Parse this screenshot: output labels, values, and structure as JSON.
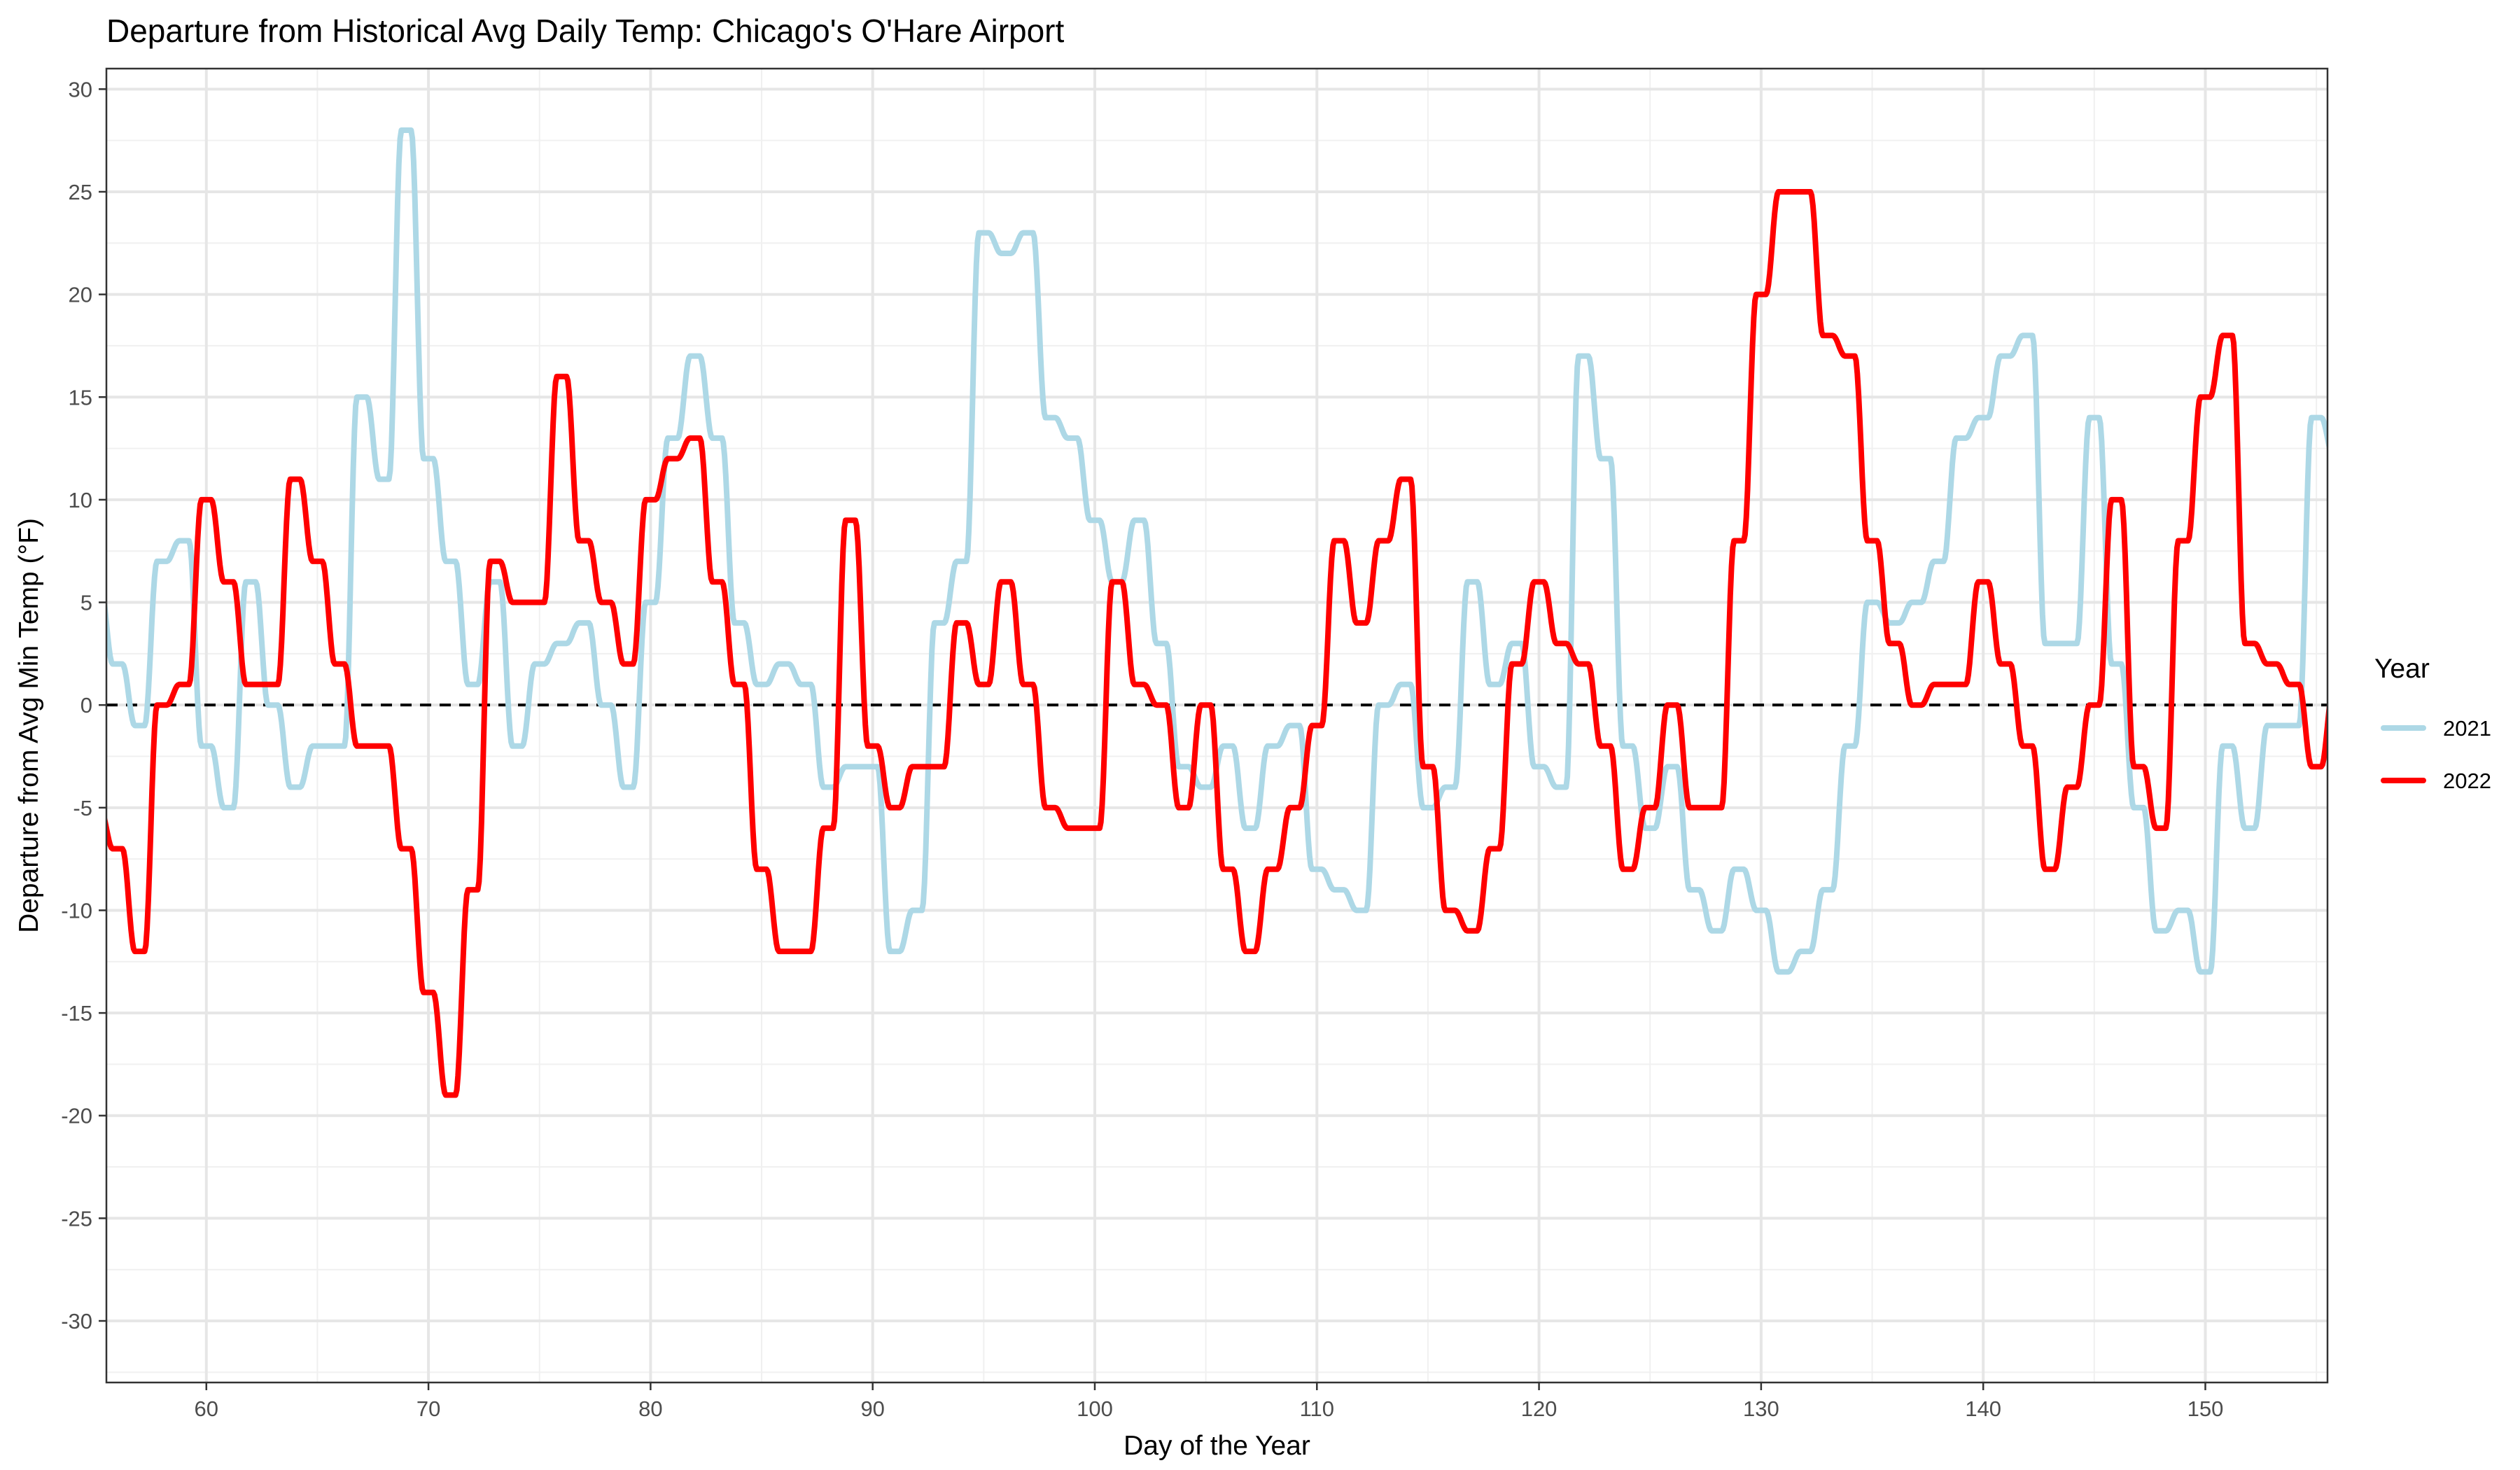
{
  "chart_data": {
    "type": "line",
    "title": "Departure from Historical Avg Daily Temp: Chicago's O'Hare Airport",
    "xlabel": "Day of the Year",
    "ylabel": "Departure from Avg Min Temp (°F)",
    "xlim": [
      55.5,
      155.5
    ],
    "ylim": [
      -33,
      31
    ],
    "x_ticks": [
      60,
      70,
      80,
      90,
      100,
      110,
      120,
      130,
      140,
      150
    ],
    "y_ticks": [
      -30,
      -25,
      -20,
      -15,
      -10,
      -5,
      0,
      5,
      10,
      15,
      20,
      25,
      30
    ],
    "grid": true,
    "reference_line": {
      "y": 0,
      "style": "dashed",
      "color": "#000000"
    },
    "legend": {
      "title": "Year",
      "position": "right"
    },
    "x": [
      55,
      56,
      57,
      58,
      59,
      60,
      61,
      62,
      63,
      64,
      65,
      66,
      67,
      68,
      69,
      70,
      71,
      72,
      73,
      74,
      75,
      76,
      77,
      78,
      79,
      80,
      81,
      82,
      83,
      84,
      85,
      86,
      87,
      88,
      89,
      90,
      91,
      92,
      93,
      94,
      95,
      96,
      97,
      98,
      99,
      100,
      101,
      102,
      103,
      104,
      105,
      106,
      107,
      108,
      109,
      110,
      111,
      112,
      113,
      114,
      115,
      116,
      117,
      118,
      119,
      120,
      121,
      122,
      123,
      124,
      125,
      126,
      127,
      128,
      129,
      130,
      131,
      132,
      133,
      134,
      135,
      136,
      137,
      138,
      139,
      140,
      141,
      142,
      143,
      144,
      145,
      146,
      147,
      148,
      149,
      150,
      151,
      152,
      153,
      154,
      155,
      156
    ],
    "series": [
      {
        "name": "2021",
        "color": "#add8e6",
        "values": [
          6,
          2,
          -1,
          7,
          8,
          -2,
          -5,
          6,
          0,
          -4,
          -2,
          -2,
          15,
          11,
          28,
          12,
          7,
          1,
          6,
          -2,
          2,
          3,
          4,
          0,
          -4,
          5,
          13,
          17,
          13,
          4,
          1,
          2,
          1,
          -4,
          -3,
          -3,
          -12,
          -10,
          4,
          7,
          23,
          22,
          23,
          14,
          13,
          9,
          6,
          9,
          3,
          -3,
          -4,
          -2,
          -6,
          -2,
          -1,
          -8,
          -9,
          -10,
          0,
          1,
          -5,
          -4,
          6,
          1,
          3,
          -3,
          -4,
          17,
          12,
          -2,
          -6,
          -3,
          -9,
          -11,
          -8,
          -10,
          -13,
          -12,
          -9,
          -2,
          5,
          4,
          5,
          7,
          13,
          14,
          17,
          18,
          3,
          3,
          14,
          2,
          -5,
          -11,
          -10,
          -13,
          -2,
          -6,
          -1,
          -1,
          14,
          12
        ]
      },
      {
        "name": "2022",
        "color": "#ff0000",
        "values": [
          -5,
          -7,
          -12,
          0,
          1,
          10,
          6,
          1,
          1,
          11,
          7,
          2,
          -2,
          -2,
          -7,
          -14,
          -19,
          -9,
          7,
          5,
          5,
          16,
          8,
          5,
          2,
          10,
          12,
          13,
          6,
          1,
          -8,
          -12,
          -12,
          -6,
          9,
          -2,
          -5,
          -3,
          -3,
          4,
          1,
          6,
          1,
          -5,
          -6,
          -6,
          6,
          1,
          0,
          -5,
          0,
          -8,
          -12,
          -8,
          -5,
          -1,
          8,
          4,
          8,
          11,
          -3,
          -10,
          -11,
          -7,
          2,
          6,
          3,
          2,
          -2,
          -8,
          -5,
          0,
          -5,
          -5,
          8,
          20,
          25,
          25,
          18,
          17,
          8,
          3,
          0,
          1,
          1,
          6,
          2,
          -2,
          -8,
          -4,
          0,
          10,
          -3,
          -6,
          8,
          15,
          18,
          3,
          2,
          1,
          -3,
          1
        ]
      }
    ]
  }
}
